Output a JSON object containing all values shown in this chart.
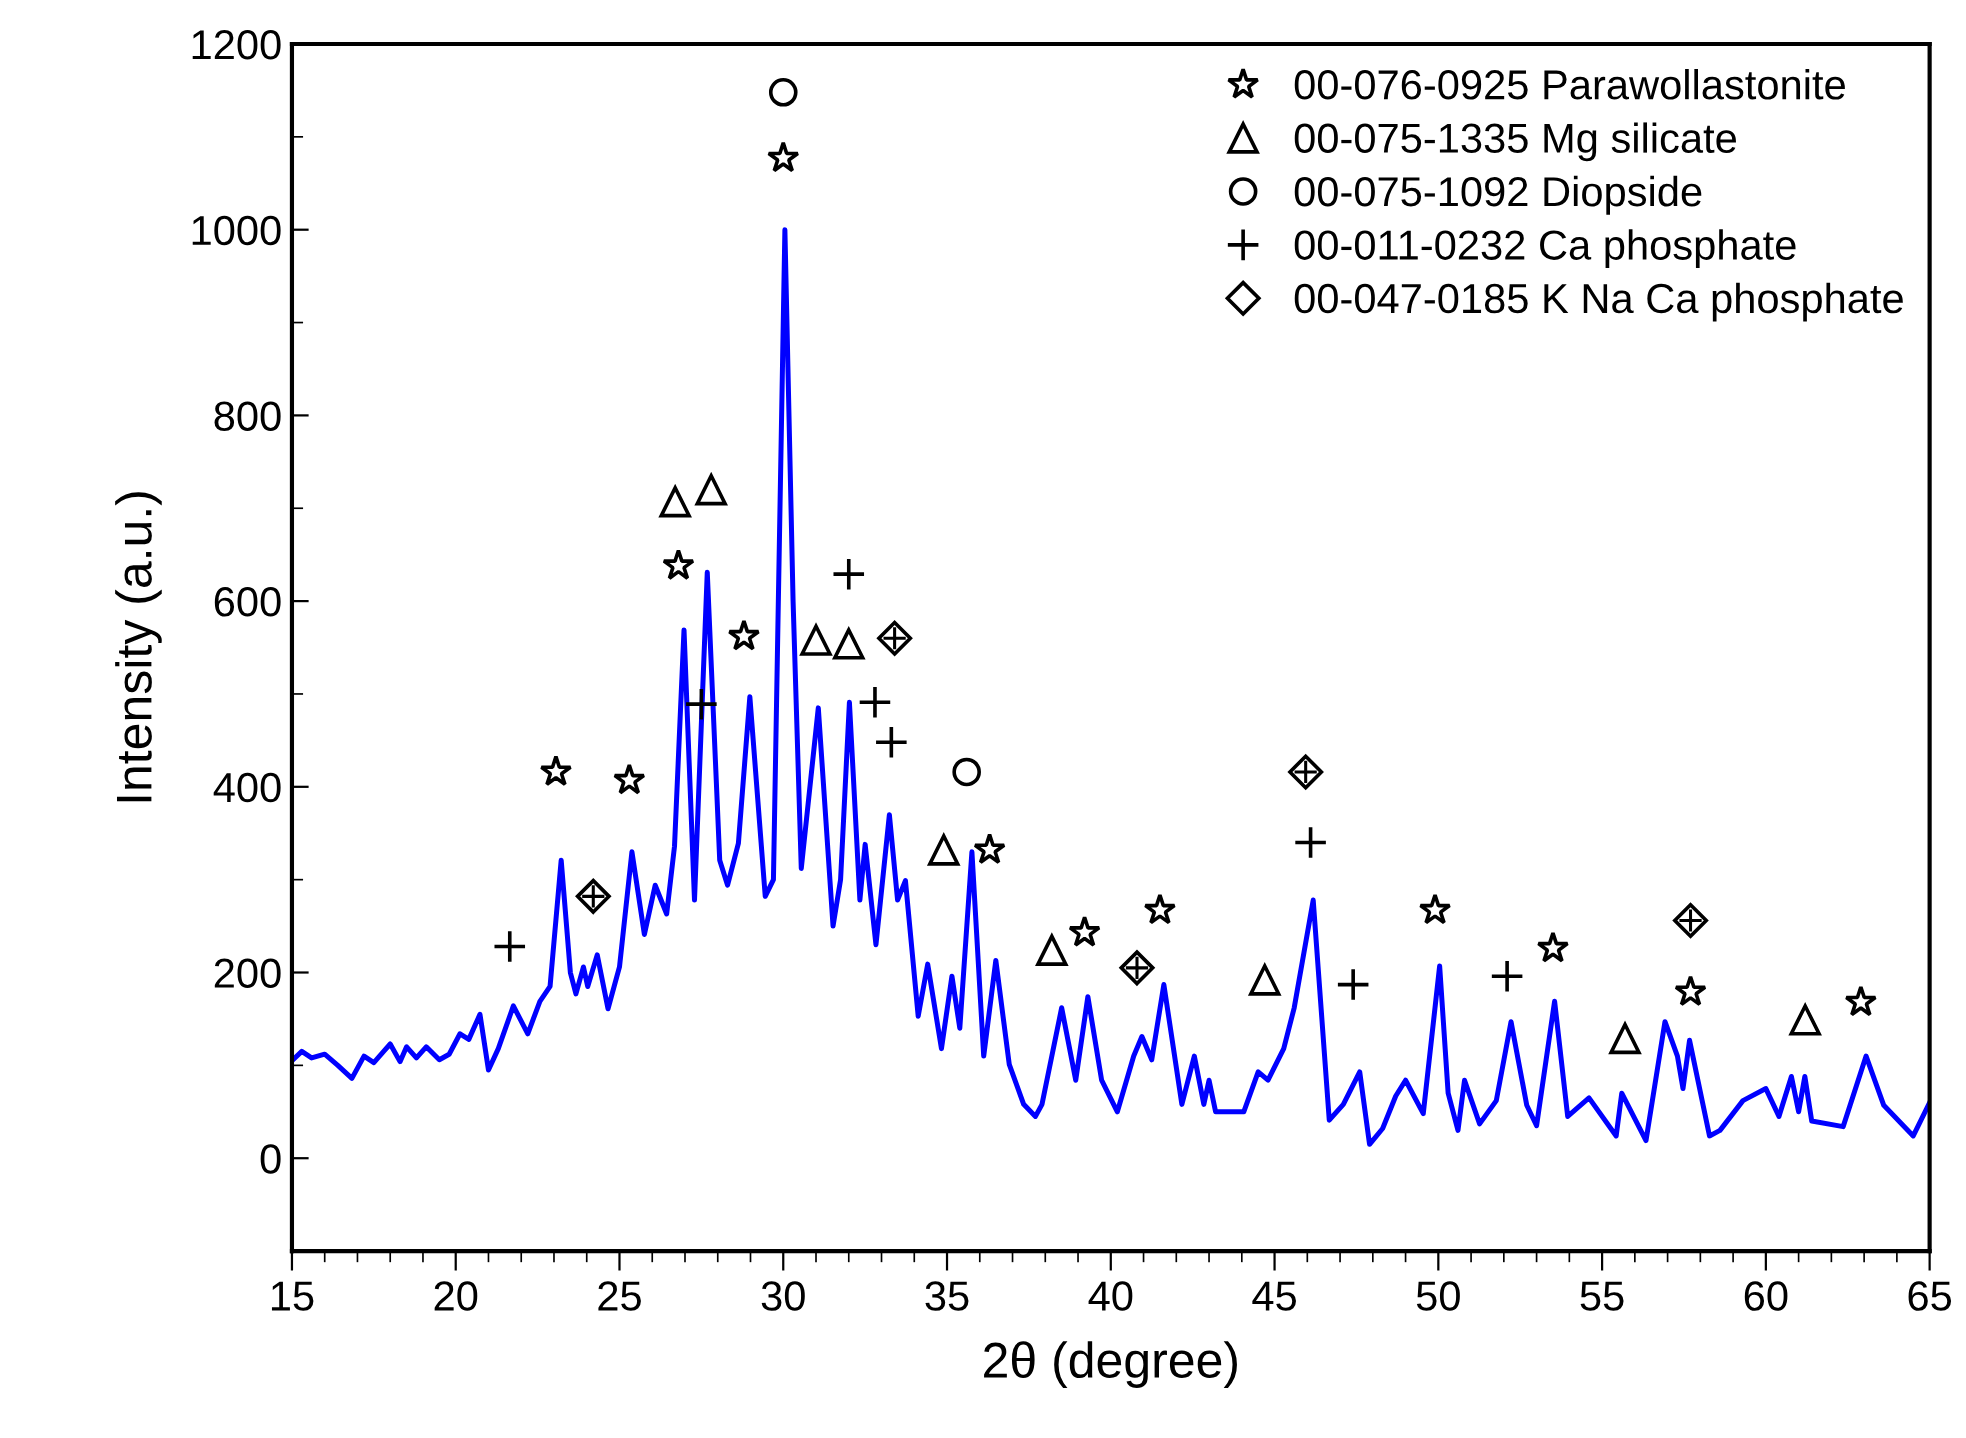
{
  "chart_data": {
    "type": "line",
    "xlabel": "2θ (degree)",
    "ylabel": "Intensity (a.u.)",
    "xlim": [
      15,
      65
    ],
    "xticks": [
      15,
      20,
      25,
      30,
      35,
      40,
      45,
      50,
      55,
      60,
      65
    ],
    "ylim": [
      -100,
      1200
    ],
    "yticks": [
      0,
      200,
      400,
      600,
      800,
      1000,
      1200
    ],
    "grid": false,
    "legend": "top right",
    "series": [
      {
        "color": "#0000ff",
        "x": [
          15,
          15.3,
          15.6,
          16,
          16.4,
          16.83,
          17.2,
          17.5,
          17.8,
          18.0,
          18.3,
          18.5,
          18.8,
          19.1,
          19.5,
          19.8,
          20.13,
          20.4,
          20.74,
          21.0,
          21.3,
          21.76,
          22.2,
          22.57,
          22.88,
          23.22,
          23.5,
          23.67,
          23.9,
          24.03,
          24.32,
          24.65,
          25.0,
          25.38,
          25.76,
          26.09,
          26.44,
          26.68,
          26.97,
          27.29,
          27.68,
          28.06,
          28.3,
          28.63,
          28.98,
          29.45,
          29.7,
          29.85,
          30.05,
          30.3,
          30.55,
          31.07,
          31.52,
          31.75,
          32.02,
          32.34,
          32.5,
          32.83,
          33.24,
          33.49,
          33.73,
          34.12,
          34.41,
          34.83,
          35.15,
          35.39,
          35.76,
          36.12,
          36.49,
          36.9,
          37.34,
          37.7,
          37.9,
          38.5,
          38.93,
          39.3,
          39.72,
          40.2,
          40.7,
          40.95,
          41.25,
          41.62,
          42.17,
          42.55,
          42.84,
          43.0,
          43.2,
          44.06,
          44.5,
          44.8,
          45.28,
          45.6,
          46.18,
          46.67,
          47.1,
          47.6,
          47.9,
          48.3,
          48.7,
          49.0,
          49.54,
          50.04,
          50.3,
          50.6,
          50.8,
          51.26,
          51.77,
          52.22,
          52.7,
          53.0,
          53.55,
          53.95,
          54.6,
          55.43,
          55.6,
          56.34,
          56.92,
          57.3,
          57.47,
          57.67,
          58.28,
          58.6,
          59.3,
          60.0,
          60.4,
          60.78,
          61.0,
          61.19,
          61.4,
          62.36,
          63.06,
          63.6,
          64.5,
          65
        ],
        "values": [
          105,
          115,
          108,
          112,
          100,
          86,
          110,
          103,
          115,
          123,
          104,
          120,
          108,
          120,
          106,
          112,
          134,
          128,
          155,
          95,
          118,
          164,
          134,
          169,
          185,
          321,
          200,
          177,
          206,
          185,
          219,
          161,
          206,
          330,
          241,
          294,
          263,
          336,
          569,
          278,
          631,
          321,
          294,
          339,
          497,
          282,
          300,
          600,
          1000,
          600,
          312,
          485,
          250,
          300,
          491,
          278,
          338,
          230,
          370,
          278,
          299,
          153,
          209,
          118,
          196,
          140,
          330,
          110,
          213,
          101,
          58,
          45,
          58,
          162,
          84,
          174,
          84,
          50,
          110,
          131,
          106,
          187,
          58,
          110,
          58,
          84,
          50,
          50,
          93,
          84,
          118,
          162,
          278,
          41,
          58,
          93,
          15,
          32,
          67,
          84,
          48,
          207,
          70,
          30,
          84,
          37,
          62,
          147,
          57,
          35,
          169,
          45,
          65,
          24,
          70,
          19,
          147,
          110,
          75,
          127,
          24,
          30,
          62,
          75,
          45,
          88,
          50,
          88,
          40,
          34,
          110,
          57,
          24,
          60
        ]
      },
      {
        "type": "scatter",
        "name": "00-076-0925 Parawollastonite",
        "color": "#000000",
        "marker": "star",
        "x": [
          23.06,
          25.3,
          26.8,
          28.8,
          30.0,
          36.3,
          39.2,
          41.5,
          49.9,
          53.5,
          57.7,
          62.9
        ],
        "values": [
          416,
          407,
          638,
          562,
          1077,
          332,
          243,
          267,
          267,
          226,
          179,
          168
        ]
      },
      {
        "type": "scatter",
        "name": "00-075-1335 Mg silicate",
        "color": "#000000",
        "marker": "triangle",
        "x": [
          26.7,
          27.8,
          31.0,
          32.0,
          34.9,
          38.2,
          44.7,
          55.7,
          61.2
        ],
        "values": [
          707,
          720,
          558,
          554,
          332,
          224,
          192,
          129,
          149
        ]
      },
      {
        "type": "scatter",
        "name": "00-075-1092 Diopside",
        "color": "#000000",
        "marker": "circle",
        "x": [
          30.0,
          35.6
        ],
        "values": [
          1148,
          416
        ]
      },
      {
        "type": "scatter",
        "name": "00-011-0232 Ca phosphate",
        "color": "#000000",
        "marker": "cross",
        "x": [
          21.65,
          27.5,
          32.0,
          32.8,
          33.3,
          46.1,
          47.4,
          52.1
        ],
        "values": [
          228,
          489,
          629,
          491,
          448,
          340,
          187,
          196
        ]
      },
      {
        "type": "scatter",
        "name": "00-047-0185 K Na Ca phosphate",
        "color": "#000000",
        "marker": "diamond",
        "x": [
          24.2,
          33.4,
          40.8,
          45.95,
          57.7
        ],
        "values": [
          282,
          560,
          205,
          416,
          256
        ]
      }
    ]
  }
}
